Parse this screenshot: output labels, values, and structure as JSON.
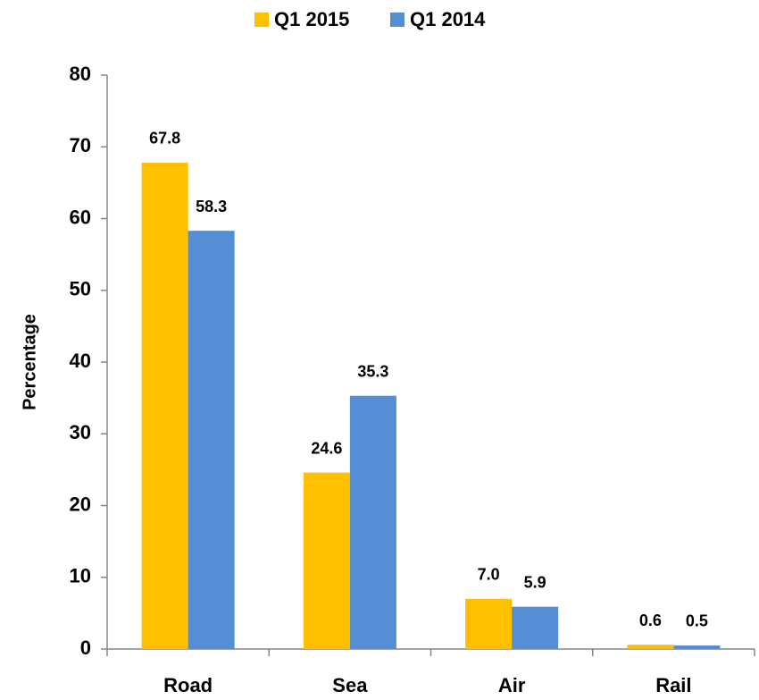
{
  "chart_data": {
    "type": "bar",
    "categories": [
      "Road",
      "Sea",
      "Air",
      "Rail"
    ],
    "y_label": "Percentage",
    "series": [
      {
        "name": "Q1 2015",
        "color": "#ffc000",
        "values": [
          67.8,
          24.6,
          7.0,
          0.6
        ],
        "value_labels": [
          "67.8",
          "24.6",
          "7.0",
          "0.6"
        ]
      },
      {
        "name": "Q1 2014",
        "color": "#558ed5",
        "values": [
          58.3,
          35.3,
          5.9,
          0.5
        ],
        "value_labels": [
          "58.3",
          "35.3",
          "5.9",
          "0.5"
        ]
      }
    ],
    "ylim": [
      0,
      80
    ],
    "yticks": [
      0,
      10,
      20,
      30,
      40,
      50,
      60,
      70,
      80
    ],
    "grid": false,
    "legend": "top"
  }
}
